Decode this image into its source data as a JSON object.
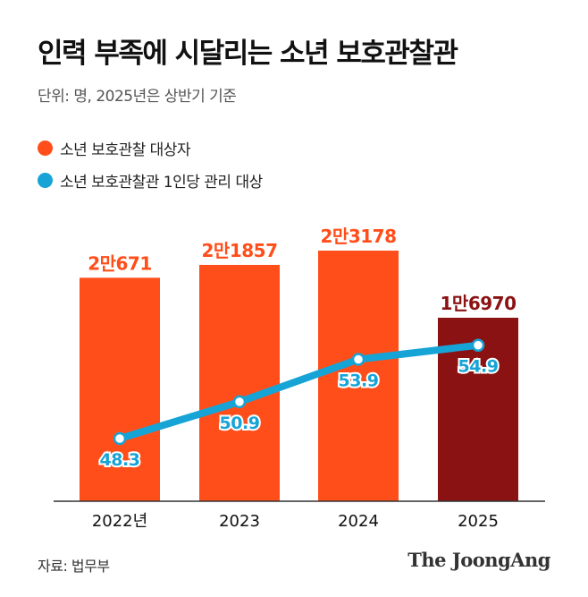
{
  "header": {
    "title": "인력 부족에 시달리는 소년 보호관찰관",
    "subtitle": "단위: 명, 2025년은 상반기 기준"
  },
  "legend": [
    {
      "label": "소년 보호관찰 대상자",
      "color": "#FF4E1A"
    },
    {
      "label": "소년 보호관찰관 1인당 관리 대상",
      "color": "#16A4D6"
    }
  ],
  "chart_data": {
    "type": "bar",
    "categories": [
      "2022년",
      "2023",
      "2024",
      "2025"
    ],
    "series": [
      {
        "name": "소년 보호관찰 대상자",
        "type": "bar",
        "values": [
          20671,
          21857,
          23178,
          16970
        ],
        "labels": [
          "2만671",
          "2만1857",
          "2만3178",
          "1만6970"
        ],
        "colors": [
          "#FF4E1A",
          "#FF4E1A",
          "#FF4E1A",
          "#8B1212"
        ],
        "label_colors": [
          "#FF4E1A",
          "#FF4E1A",
          "#FF4E1A",
          "#8B1212"
        ]
      },
      {
        "name": "소년 보호관찰관 1인당 관리 대상",
        "type": "line",
        "values": [
          48.3,
          50.9,
          53.9,
          54.9
        ],
        "labels": [
          "48.3",
          "50.9",
          "53.9",
          "54.9"
        ],
        "color": "#16A4D6"
      }
    ],
    "title": "인력 부족에 시달리는 소년 보호관찰관",
    "xlabel": "",
    "ylabel": "",
    "grid": false,
    "legend_position": "top-left"
  },
  "footer": {
    "source": "자료: 법무부",
    "logo": "The JoongAng"
  }
}
